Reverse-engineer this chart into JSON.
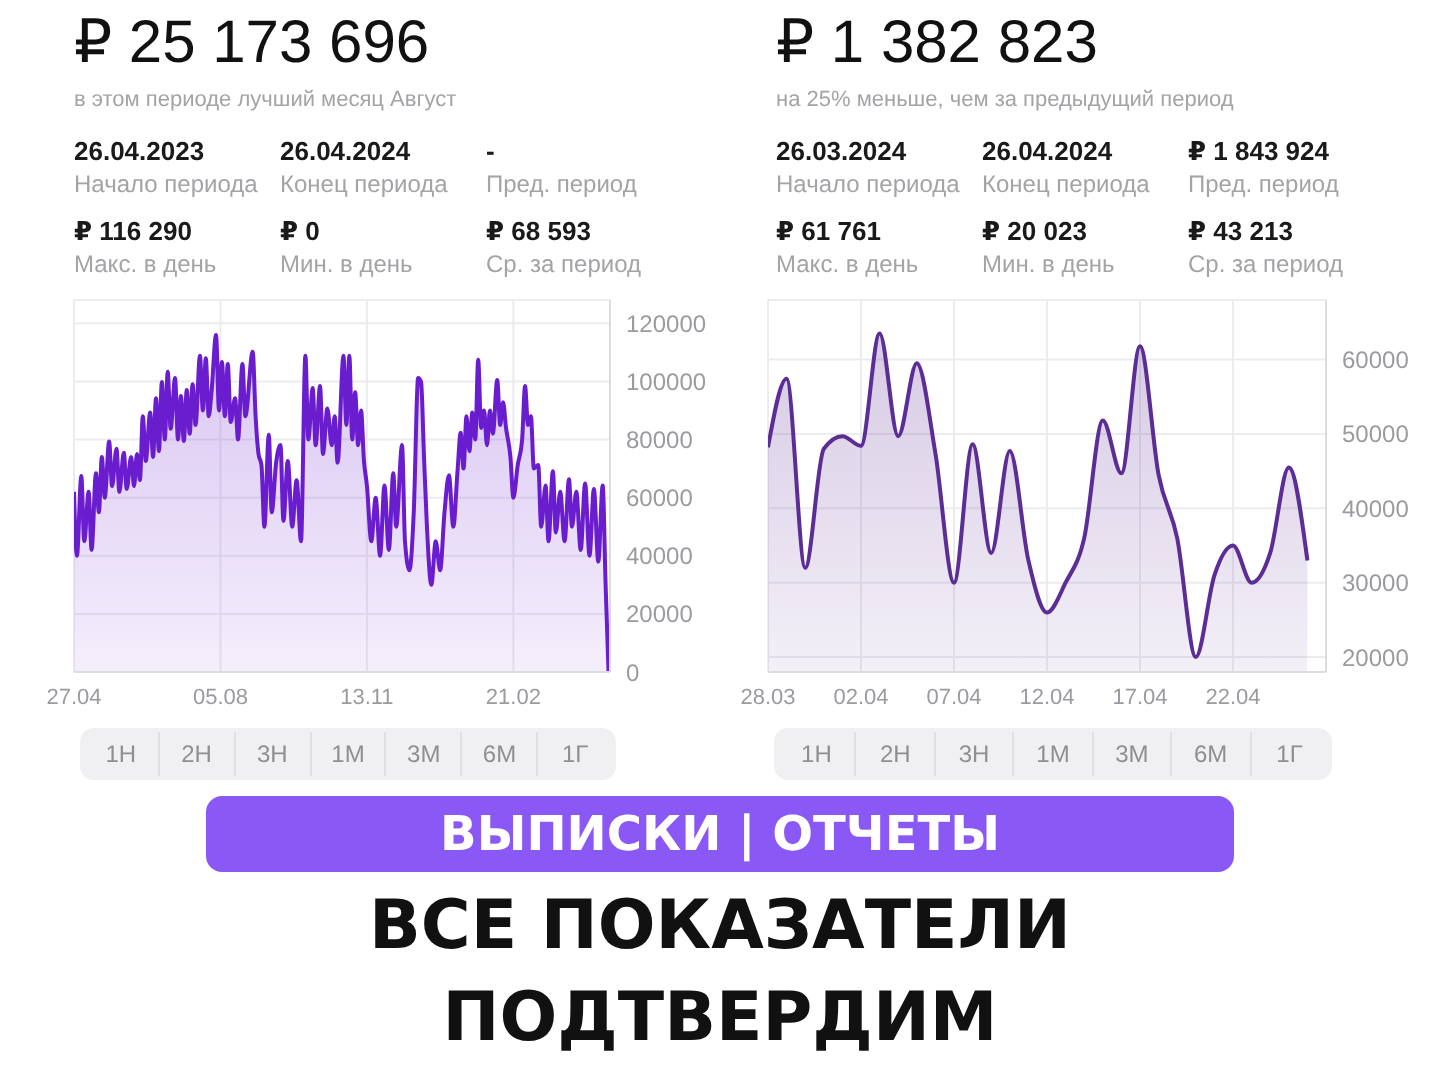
{
  "chart_data": [
    {
      "type": "other",
      "title": "₽ 25 173 696",
      "subtitle": "в этом периоде лучший месяц Август",
      "annotations": [
        "26.04.2023",
        "Начало периода",
        "26.04.2024",
        "Конец периода",
        "-",
        "Пред. период",
        "₽ 116 290",
        "Макс. в день",
        "₽ 0",
        "Мин. в день",
        "₽ 68 593",
        "Ср. за период"
      ]
    },
    {
      "type": "area",
      "color": "#6a1ccf",
      "grid": true,
      "x": [
        "2023-04-27",
        "2023-04-29",
        "2023-05-02",
        "2023-05-04",
        "2023-05-07",
        "2023-05-09",
        "2023-05-12",
        "2023-05-14",
        "2023-05-16",
        "2023-05-18",
        "2023-05-21",
        "2023-05-23",
        "2023-05-26",
        "2023-05-28",
        "2023-05-31",
        "2023-06-02",
        "2023-06-05",
        "2023-06-07",
        "2023-06-09",
        "2023-06-11",
        "2023-06-13",
        "2023-06-15",
        "2023-06-18",
        "2023-06-20",
        "2023-06-22",
        "2023-06-24",
        "2023-06-26",
        "2023-06-28",
        "2023-06-30",
        "2023-07-02",
        "2023-07-05",
        "2023-07-07",
        "2023-07-09",
        "2023-07-11",
        "2023-07-13",
        "2023-07-15",
        "2023-07-17",
        "2023-07-19",
        "2023-07-22",
        "2023-07-24",
        "2023-07-26",
        "2023-07-28",
        "2023-07-30",
        "2023-08-02",
        "2023-08-04",
        "2023-08-06",
        "2023-08-08",
        "2023-08-10",
        "2023-08-12",
        "2023-08-15",
        "2023-08-17",
        "2023-08-20",
        "2023-08-22",
        "2023-08-27",
        "2023-08-29",
        "2023-08-31",
        "2023-09-02",
        "2023-09-04",
        "2023-09-07",
        "2023-09-09",
        "2023-09-12",
        "2023-09-15",
        "2023-09-17",
        "2023-09-20",
        "2023-09-23",
        "2023-09-26",
        "2023-09-29",
        "2023-10-02",
        "2023-10-04",
        "2023-10-07",
        "2023-10-09",
        "2023-10-12",
        "2023-10-14",
        "2023-10-17",
        "2023-10-20",
        "2023-10-22",
        "2023-10-24",
        "2023-10-28",
        "2023-10-30",
        "2023-11-01",
        "2023-11-03",
        "2023-11-05",
        "2023-11-07",
        "2023-11-09",
        "2023-11-11",
        "2023-11-13",
        "2023-11-16",
        "2023-11-19",
        "2023-11-22",
        "2023-11-25",
        "2023-11-28",
        "2023-12-01",
        "2023-12-03",
        "2023-12-07",
        "2023-12-09",
        "2023-12-12",
        "2023-12-15",
        "2023-12-18",
        "2023-12-20",
        "2023-12-22",
        "2023-12-24",
        "2023-12-27",
        "2023-12-30",
        "2024-01-02",
        "2024-01-05",
        "2024-01-08",
        "2024-01-11",
        "2024-01-14",
        "2024-01-16",
        "2024-01-18",
        "2024-01-20",
        "2024-01-22",
        "2024-01-24",
        "2024-01-26",
        "2024-01-28",
        "2024-01-30",
        "2024-02-01",
        "2024-02-03",
        "2024-02-05",
        "2024-02-07",
        "2024-02-10",
        "2024-02-12",
        "2024-02-14",
        "2024-02-16",
        "2024-02-19",
        "2024-02-21",
        "2024-02-24",
        "2024-02-27",
        "2024-02-29",
        "2024-03-02",
        "2024-03-04",
        "2024-03-06",
        "2024-03-09",
        "2024-03-11",
        "2024-03-14",
        "2024-03-16",
        "2024-03-19",
        "2024-03-21",
        "2024-03-24",
        "2024-03-27",
        "2024-03-30",
        "2024-04-01",
        "2024-04-04",
        "2024-04-07",
        "2024-04-10",
        "2024-04-13",
        "2024-04-16",
        "2024-04-19",
        "2024-04-22",
        "2024-04-24",
        "2024-04-26"
      ],
      "values": [
        62000,
        40000,
        67400,
        45000,
        62000,
        42000,
        68400,
        55000,
        74000,
        60000,
        79300,
        64000,
        76800,
        62000,
        75400,
        63000,
        74000,
        64000,
        75000,
        66000,
        88000,
        72600,
        89300,
        74000,
        94200,
        76000,
        99800,
        80000,
        103300,
        83700,
        101200,
        80000,
        95000,
        79500,
        97000,
        82000,
        99000,
        85000,
        108800,
        90000,
        108000,
        88000,
        97000,
        116000,
        90000,
        106700,
        88000,
        106000,
        86000,
        94200,
        80000,
        106000,
        88000,
        110200,
        88000,
        75000,
        71200,
        50000,
        81600,
        55000,
        72000,
        78100,
        52000,
        72600,
        50000,
        66000,
        45000,
        108800,
        80000,
        97700,
        78000,
        98400,
        75000,
        90700,
        78000,
        88000,
        72000,
        108800,
        85000,
        108800,
        80000,
        96300,
        78000,
        90000,
        72600,
        64200,
        45000,
        60000,
        40000,
        64200,
        42000,
        68400,
        50000,
        78100,
        45000,
        35000,
        55000,
        101200,
        99800,
        74000,
        50000,
        30000,
        45000,
        35000,
        55000,
        67700,
        50000,
        70000,
        82300,
        70000,
        88000,
        76000,
        89300,
        80000,
        107400,
        84000,
        90000,
        78000,
        90000,
        82000,
        100500,
        85000,
        92800,
        84000,
        74000,
        60000,
        71200,
        80000,
        98400,
        85000,
        88000,
        70000,
        71200,
        50000,
        64200,
        45000,
        69100,
        48000,
        62000,
        45000,
        66300,
        50000,
        62000,
        42000,
        64900,
        40000,
        63000,
        38000,
        64200,
        30000,
        0
      ],
      "xlim": [
        "2023-04-27",
        "2024-04-27"
      ],
      "xticks": [
        {
          "value": "2023-04-27",
          "label": "27.04"
        },
        {
          "value": "2023-08-05",
          "label": "05.08"
        },
        {
          "value": "2023-11-13",
          "label": "13.11"
        },
        {
          "value": "2024-02-21",
          "label": "21.02"
        }
      ],
      "ylim": [
        0,
        128000
      ],
      "yticks": [
        0,
        20000,
        40000,
        60000,
        80000,
        100000,
        120000
      ],
      "annotations": [
        "1Н",
        "2Н",
        "3Н",
        "1М",
        "3М",
        "6М",
        "1Г"
      ]
    },
    {
      "type": "other",
      "title": "₽ 1 382 823",
      "subtitle": "на 25% меньше, чем за предыдущий период",
      "annotations": [
        "26.03.2024",
        "Начало периода",
        "26.04.2024",
        "Конец периода",
        "₽ 1 843 924",
        "Пред. период",
        "₽ 61 761",
        "Макс. в день",
        "₽ 20 023",
        "Мин. в день",
        "₽ 43 213",
        "Ср. за период"
      ]
    },
    {
      "type": "area",
      "color": "#5b2d95",
      "grid": true,
      "x": [
        "2024-03-28",
        "2024-03-29",
        "2024-03-30",
        "2024-03-31",
        "2024-04-01",
        "2024-04-02",
        "2024-04-03",
        "2024-04-04",
        "2024-04-05",
        "2024-04-06",
        "2024-04-07",
        "2024-04-08",
        "2024-04-09",
        "2024-04-10",
        "2024-04-11",
        "2024-04-12",
        "2024-04-13",
        "2024-04-14",
        "2024-04-15",
        "2024-04-16",
        "2024-04-17",
        "2024-04-18",
        "2024-04-19",
        "2024-04-20",
        "2024-04-21",
        "2024-04-22",
        "2024-04-23",
        "2024-04-24",
        "2024-04-25",
        "2024-04-26"
      ],
      "values": [
        48200,
        57400,
        32000,
        48000,
        49700,
        48400,
        63500,
        49700,
        59500,
        47400,
        30000,
        48600,
        34000,
        47700,
        33000,
        26000,
        30000,
        36000,
        51800,
        44700,
        61800,
        44500,
        36000,
        20000,
        31000,
        35000,
        30000,
        34000,
        45500,
        33000
      ],
      "xlim": [
        "2024-03-28",
        "2024-04-27"
      ],
      "xticks": [
        {
          "value": "2024-03-28",
          "label": "28.03"
        },
        {
          "value": "2024-04-02",
          "label": "02.04"
        },
        {
          "value": "2024-04-07",
          "label": "07.04"
        },
        {
          "value": "2024-04-12",
          "label": "12.04"
        },
        {
          "value": "2024-04-17",
          "label": "17.04"
        },
        {
          "value": "2024-04-22",
          "label": "22.04"
        }
      ],
      "ylim": [
        18000,
        68000
      ],
      "yticks": [
        20000,
        30000,
        40000,
        50000,
        60000
      ],
      "annotations": [
        "1Н",
        "2Н",
        "3Н",
        "1М",
        "3М",
        "6М",
        "1Г"
      ]
    },
    {
      "type": "other",
      "title": "ВЫПИСКИ | ОТЧЕТЫ",
      "annotations": [
        "ВСЕ ПОКАЗАТЕЛИ",
        "ПОДТВЕРДИМ"
      ]
    }
  ]
}
